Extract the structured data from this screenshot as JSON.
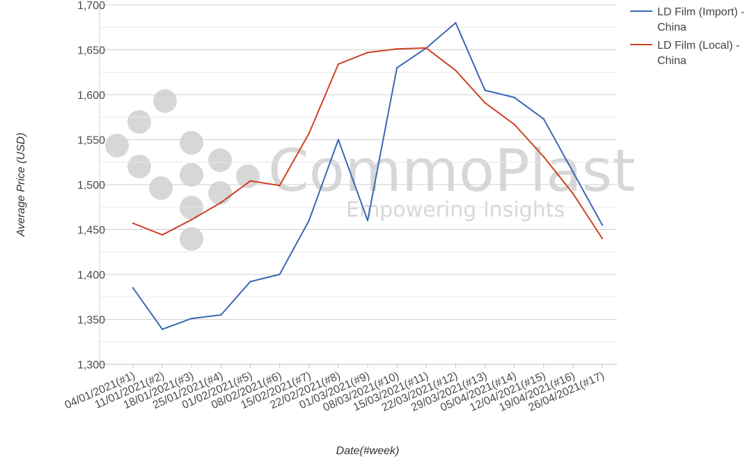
{
  "chart_data": {
    "type": "line",
    "title": "",
    "xlabel": "Date(#week)",
    "ylabel": "Average Price (USD)",
    "ylim": [
      1300,
      1700
    ],
    "ytick_step": 50,
    "ytick_labels": [
      "1,300",
      "1,350",
      "1,400",
      "1,450",
      "1,500",
      "1,550",
      "1,600",
      "1,650",
      "1,700"
    ],
    "grid": true,
    "legend_position": "top-right",
    "categories": [
      "04/01/2021(#1)",
      "11/01/2021(#2)",
      "18/01/2021(#3)",
      "25/01/2021(#4)",
      "01/02/2021(#5)",
      "08/02/2021(#6)",
      "15/02/2021(#7)",
      "22/02/2021(#8)",
      "01/03/2021(#9)",
      "08/03/2021(#10)",
      "15/03/2021(#11)",
      "22/03/2021(#12)",
      "29/03/2021(#13)",
      "05/04/2021(#14)",
      "12/04/2021(#15)",
      "19/04/2021(#16)",
      "26/04/2021(#17)"
    ],
    "series": [
      {
        "name": "LD Film (Import) - China",
        "legend_lines": [
          "LD Film (Import) -",
          "China"
        ],
        "color": "#3a67b1",
        "values": [
          1385,
          1339,
          1351,
          1355,
          1392,
          1400,
          1460,
          1550,
          1460,
          1630,
          1652,
          1680,
          1605,
          1597,
          1573,
          1514,
          1455
        ]
      },
      {
        "name": "LD Film (Local) - China",
        "legend_lines": [
          "LD Film (Local) -",
          "China"
        ],
        "color": "#cf4123",
        "values": [
          1457,
          1444,
          1461,
          1480,
          1504,
          1499,
          1557,
          1634,
          1647,
          1651,
          1652,
          1627,
          1591,
          1567,
          1531,
          1490,
          1440
        ]
      }
    ]
  },
  "watermark": {
    "brand": "CommoPlast",
    "tagline": "Empowering Insights",
    "color": "#b8b8b8"
  }
}
